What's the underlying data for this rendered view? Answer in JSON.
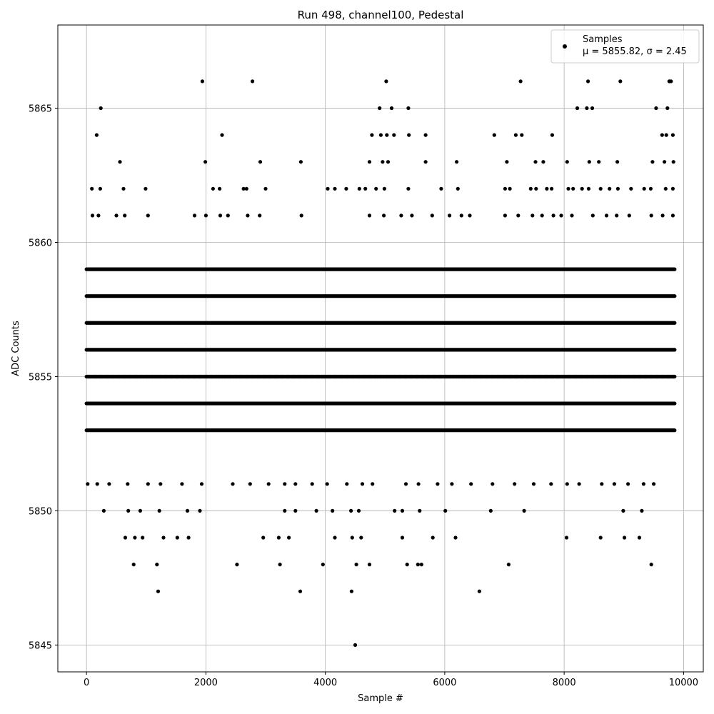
{
  "chart_data": {
    "type": "scatter",
    "title": "Run 498, channel100, Pedestal",
    "xlabel": "Sample #",
    "ylabel": "ADC Counts",
    "xlim": [
      -480,
      10330
    ],
    "ylim": [
      5844,
      5868.1
    ],
    "x_ticks": [
      0,
      2000,
      4000,
      6000,
      8000,
      10000
    ],
    "y_ticks": [
      5845,
      5850,
      5855,
      5860,
      5865
    ],
    "x_tick_labels": [
      "0",
      "2000",
      "4000",
      "6000",
      "8000",
      "10000"
    ],
    "y_tick_labels": [
      "5845",
      "5850",
      "5855",
      "5860",
      "5865"
    ],
    "grid": true,
    "marker_color": "#000000",
    "grid_color": "#b0b0b0",
    "legend": {
      "placement": "top-right",
      "entries": [
        {
          "label": "Samples",
          "sublabel": "μ = 5855.82, σ = 2.45"
        }
      ]
    },
    "series": [
      {
        "name": "Samples",
        "x_range": [
          0,
          9850
        ],
        "dense_levels": [
          5853,
          5854,
          5855,
          5856,
          5857,
          5858,
          5859
        ],
        "outliers": [
          [
            1940,
            5866
          ],
          [
            2780,
            5866
          ],
          [
            5020,
            5866
          ],
          [
            7270,
            5866
          ],
          [
            8400,
            5866
          ],
          [
            8940,
            5866
          ],
          [
            9760,
            5866
          ],
          [
            9790,
            5866
          ],
          [
            240,
            5865
          ],
          [
            4910,
            5865
          ],
          [
            5110,
            5865
          ],
          [
            5390,
            5865
          ],
          [
            8220,
            5865
          ],
          [
            8380,
            5865
          ],
          [
            8470,
            5865
          ],
          [
            9540,
            5865
          ],
          [
            9730,
            5865
          ],
          [
            170,
            5864
          ],
          [
            2270,
            5864
          ],
          [
            4780,
            5864
          ],
          [
            4930,
            5864
          ],
          [
            5030,
            5864
          ],
          [
            5150,
            5864
          ],
          [
            5400,
            5864
          ],
          [
            5680,
            5864
          ],
          [
            6830,
            5864
          ],
          [
            7190,
            5864
          ],
          [
            7290,
            5864
          ],
          [
            7800,
            5864
          ],
          [
            9640,
            5864
          ],
          [
            9710,
            5864
          ],
          [
            9820,
            5864
          ],
          [
            560,
            5863
          ],
          [
            1990,
            5863
          ],
          [
            2910,
            5863
          ],
          [
            3590,
            5863
          ],
          [
            4740,
            5863
          ],
          [
            4960,
            5863
          ],
          [
            5050,
            5863
          ],
          [
            5680,
            5863
          ],
          [
            6200,
            5863
          ],
          [
            7040,
            5863
          ],
          [
            7520,
            5863
          ],
          [
            7650,
            5863
          ],
          [
            8050,
            5863
          ],
          [
            8420,
            5863
          ],
          [
            8580,
            5863
          ],
          [
            8890,
            5863
          ],
          [
            9480,
            5863
          ],
          [
            9680,
            5863
          ],
          [
            9830,
            5863
          ],
          [
            90,
            5862
          ],
          [
            230,
            5862
          ],
          [
            620,
            5862
          ],
          [
            990,
            5862
          ],
          [
            2120,
            5862
          ],
          [
            2230,
            5862
          ],
          [
            2630,
            5862
          ],
          [
            2680,
            5862
          ],
          [
            3000,
            5862
          ],
          [
            4040,
            5862
          ],
          [
            4160,
            5862
          ],
          [
            4350,
            5862
          ],
          [
            4570,
            5862
          ],
          [
            4670,
            5862
          ],
          [
            4850,
            5862
          ],
          [
            4990,
            5862
          ],
          [
            5390,
            5862
          ],
          [
            5940,
            5862
          ],
          [
            6220,
            5862
          ],
          [
            7010,
            5862
          ],
          [
            7090,
            5862
          ],
          [
            7440,
            5862
          ],
          [
            7530,
            5862
          ],
          [
            7710,
            5862
          ],
          [
            7790,
            5862
          ],
          [
            8070,
            5862
          ],
          [
            8150,
            5862
          ],
          [
            8300,
            5862
          ],
          [
            8410,
            5862
          ],
          [
            8610,
            5862
          ],
          [
            8760,
            5862
          ],
          [
            8900,
            5862
          ],
          [
            9120,
            5862
          ],
          [
            9340,
            5862
          ],
          [
            9450,
            5862
          ],
          [
            9700,
            5862
          ],
          [
            9820,
            5862
          ],
          [
            100,
            5861
          ],
          [
            200,
            5861
          ],
          [
            500,
            5861
          ],
          [
            640,
            5861
          ],
          [
            1030,
            5861
          ],
          [
            1810,
            5861
          ],
          [
            2000,
            5861
          ],
          [
            2240,
            5861
          ],
          [
            2370,
            5861
          ],
          [
            2700,
            5861
          ],
          [
            2900,
            5861
          ],
          [
            3600,
            5861
          ],
          [
            4740,
            5861
          ],
          [
            4980,
            5861
          ],
          [
            5270,
            5861
          ],
          [
            5450,
            5861
          ],
          [
            5790,
            5861
          ],
          [
            6080,
            5861
          ],
          [
            6280,
            5861
          ],
          [
            6420,
            5861
          ],
          [
            7010,
            5861
          ],
          [
            7230,
            5861
          ],
          [
            7470,
            5861
          ],
          [
            7630,
            5861
          ],
          [
            7820,
            5861
          ],
          [
            7950,
            5861
          ],
          [
            8130,
            5861
          ],
          [
            8480,
            5861
          ],
          [
            8710,
            5861
          ],
          [
            8880,
            5861
          ],
          [
            9090,
            5861
          ],
          [
            9460,
            5861
          ],
          [
            9650,
            5861
          ],
          [
            9820,
            5861
          ],
          [
            20,
            5851
          ],
          [
            180,
            5851
          ],
          [
            380,
            5851
          ],
          [
            690,
            5851
          ],
          [
            1030,
            5851
          ],
          [
            1240,
            5851
          ],
          [
            1600,
            5851
          ],
          [
            1930,
            5851
          ],
          [
            2450,
            5851
          ],
          [
            2740,
            5851
          ],
          [
            3050,
            5851
          ],
          [
            3320,
            5851
          ],
          [
            3500,
            5851
          ],
          [
            3780,
            5851
          ],
          [
            4030,
            5851
          ],
          [
            4360,
            5851
          ],
          [
            4620,
            5851
          ],
          [
            4790,
            5851
          ],
          [
            5350,
            5851
          ],
          [
            5560,
            5851
          ],
          [
            5880,
            5851
          ],
          [
            6120,
            5851
          ],
          [
            6440,
            5851
          ],
          [
            6800,
            5851
          ],
          [
            7170,
            5851
          ],
          [
            7490,
            5851
          ],
          [
            7780,
            5851
          ],
          [
            8050,
            5851
          ],
          [
            8250,
            5851
          ],
          [
            8630,
            5851
          ],
          [
            8840,
            5851
          ],
          [
            9070,
            5851
          ],
          [
            9330,
            5851
          ],
          [
            9500,
            5851
          ],
          [
            290,
            5850
          ],
          [
            700,
            5850
          ],
          [
            900,
            5850
          ],
          [
            1220,
            5850
          ],
          [
            1690,
            5850
          ],
          [
            1900,
            5850
          ],
          [
            3320,
            5850
          ],
          [
            3500,
            5850
          ],
          [
            3850,
            5850
          ],
          [
            4120,
            5850
          ],
          [
            4430,
            5850
          ],
          [
            4560,
            5850
          ],
          [
            5160,
            5850
          ],
          [
            5290,
            5850
          ],
          [
            5580,
            5850
          ],
          [
            6010,
            5850
          ],
          [
            6770,
            5850
          ],
          [
            7330,
            5850
          ],
          [
            8990,
            5850
          ],
          [
            9300,
            5850
          ],
          [
            650,
            5849
          ],
          [
            810,
            5849
          ],
          [
            940,
            5849
          ],
          [
            1290,
            5849
          ],
          [
            1520,
            5849
          ],
          [
            1710,
            5849
          ],
          [
            2960,
            5849
          ],
          [
            3220,
            5849
          ],
          [
            3390,
            5849
          ],
          [
            4160,
            5849
          ],
          [
            4450,
            5849
          ],
          [
            4600,
            5849
          ],
          [
            5290,
            5849
          ],
          [
            5800,
            5849
          ],
          [
            6180,
            5849
          ],
          [
            8040,
            5849
          ],
          [
            8610,
            5849
          ],
          [
            9010,
            5849
          ],
          [
            9260,
            5849
          ],
          [
            790,
            5848
          ],
          [
            1180,
            5848
          ],
          [
            2520,
            5848
          ],
          [
            3240,
            5848
          ],
          [
            3960,
            5848
          ],
          [
            4520,
            5848
          ],
          [
            4740,
            5848
          ],
          [
            5370,
            5848
          ],
          [
            5550,
            5848
          ],
          [
            5610,
            5848
          ],
          [
            7070,
            5848
          ],
          [
            9460,
            5848
          ],
          [
            1200,
            5847
          ],
          [
            3580,
            5847
          ],
          [
            4440,
            5847
          ],
          [
            6580,
            5847
          ],
          [
            4500,
            5845
          ]
        ]
      }
    ]
  }
}
